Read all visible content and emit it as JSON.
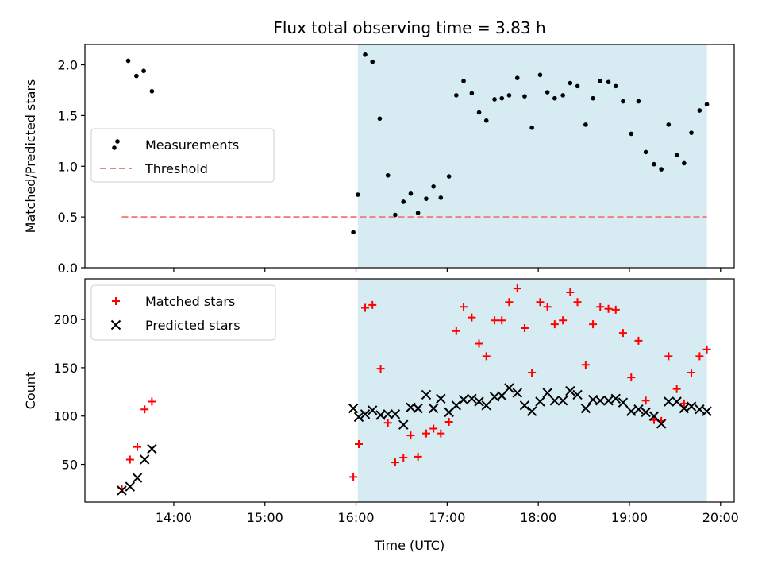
{
  "title": "Flux total observing time = 3.83 h",
  "colors": {
    "shade": "#add8e6",
    "measurement": "#000000",
    "threshold": "#f08080",
    "matched": "#ff0000",
    "predicted": "#000000"
  },
  "chart_data": [
    {
      "type": "scatter",
      "panel": "top",
      "xlabel": "",
      "ylabel": "Matched/Predicted stars",
      "xlim_hours": [
        13.025,
        20.15
      ],
      "ylim": [
        0,
        2.2
      ],
      "yticks": [
        0.0,
        0.5,
        1.0,
        1.5,
        2.0
      ],
      "ytick_labels": [
        "0.0",
        "0.5",
        "1.0",
        "1.5",
        "2.0"
      ],
      "legend": {
        "position": "center-left",
        "labels": [
          "Measurements",
          "Threshold"
        ]
      },
      "shaded_span_hours": [
        16.02,
        19.85
      ],
      "threshold": {
        "name": "Threshold",
        "y": 0.5,
        "x_range_hours": [
          13.43,
          19.85
        ]
      },
      "series": [
        {
          "name": "Measurements",
          "marker": "dot",
          "x_hours": [
            13.5,
            13.59,
            13.67,
            13.76,
            15.97,
            16.02,
            16.1,
            16.18,
            16.26,
            16.35,
            16.43,
            16.52,
            16.6,
            16.68,
            16.77,
            16.85,
            16.93,
            17.02,
            17.1,
            17.18,
            17.27,
            17.35,
            17.43,
            17.52,
            17.6,
            17.68,
            17.77,
            17.85,
            17.93,
            18.02,
            18.1,
            18.18,
            18.27,
            18.35,
            18.43,
            18.52,
            18.6,
            18.68,
            18.77,
            18.85,
            18.93,
            19.02,
            19.1,
            19.18,
            19.27,
            19.35,
            19.43,
            19.52,
            19.6,
            19.68,
            19.77,
            19.85
          ],
          "y": [
            2.04,
            1.89,
            1.94,
            1.74,
            0.35,
            0.72,
            2.1,
            2.03,
            1.47,
            0.91,
            0.52,
            0.65,
            0.73,
            0.54,
            0.68,
            0.8,
            0.69,
            0.9,
            1.7,
            1.84,
            1.72,
            1.53,
            1.45,
            1.66,
            1.67,
            1.7,
            1.87,
            1.69,
            1.38,
            1.9,
            1.73,
            1.67,
            1.7,
            1.82,
            1.79,
            1.41,
            1.67,
            1.84,
            1.83,
            1.79,
            1.64,
            1.32,
            1.64,
            1.14,
            1.02,
            0.97,
            1.41,
            1.11,
            1.03,
            1.33,
            1.55,
            1.61
          ]
        }
      ]
    },
    {
      "type": "scatter",
      "panel": "bottom",
      "xlabel": "Time (UTC)",
      "ylabel": "Count",
      "xlim_hours": [
        13.025,
        20.15
      ],
      "ylim": [
        11,
        242
      ],
      "yticks": [
        50,
        100,
        150,
        200
      ],
      "ytick_labels": [
        "50",
        "100",
        "150",
        "200"
      ],
      "xticks_hours": [
        14,
        15,
        16,
        17,
        18,
        19,
        20
      ],
      "xtick_labels": [
        "14:00",
        "15:00",
        "16:00",
        "17:00",
        "18:00",
        "19:00",
        "20:00"
      ],
      "legend": {
        "position": "top-left",
        "labels": [
          "Matched stars",
          "Predicted stars"
        ]
      },
      "shaded_span_hours": [
        16.02,
        19.85
      ],
      "series": [
        {
          "name": "Matched stars",
          "marker": "plus",
          "x_hours": [
            13.43,
            13.52,
            13.6,
            13.68,
            13.76,
            15.97,
            16.03,
            16.1,
            16.18,
            16.27,
            16.35,
            16.43,
            16.52,
            16.6,
            16.68,
            16.77,
            16.85,
            16.93,
            17.02,
            17.1,
            17.18,
            17.27,
            17.35,
            17.43,
            17.52,
            17.6,
            17.68,
            17.77,
            17.85,
            17.93,
            18.02,
            18.1,
            18.18,
            18.27,
            18.35,
            18.43,
            18.52,
            18.6,
            18.68,
            18.77,
            18.85,
            18.93,
            19.02,
            19.1,
            19.18,
            19.27,
            19.35,
            19.43,
            19.52,
            19.6,
            19.68,
            19.77,
            19.85
          ],
          "y": [
            25,
            55,
            68,
            107,
            115,
            37,
            71,
            212,
            215,
            149,
            93,
            52,
            57,
            80,
            58,
            82,
            87,
            82,
            94,
            188,
            213,
            202,
            175,
            162,
            199,
            199,
            218,
            232,
            191,
            145,
            218,
            213,
            195,
            199,
            228,
            218,
            153,
            195,
            213,
            211,
            210,
            186,
            140,
            178,
            116,
            96,
            95,
            162,
            128,
            113,
            145,
            162,
            169
          ]
        },
        {
          "name": "Predicted stars",
          "marker": "x",
          "x_hours": [
            13.43,
            13.52,
            13.6,
            13.68,
            13.76,
            15.97,
            16.03,
            16.1,
            16.18,
            16.27,
            16.35,
            16.43,
            16.52,
            16.6,
            16.68,
            16.77,
            16.85,
            16.93,
            17.02,
            17.1,
            17.18,
            17.27,
            17.35,
            17.43,
            17.52,
            17.6,
            17.68,
            17.77,
            17.85,
            17.93,
            18.02,
            18.1,
            18.18,
            18.27,
            18.35,
            18.43,
            18.52,
            18.6,
            18.68,
            18.77,
            18.85,
            18.93,
            19.02,
            19.1,
            19.18,
            19.27,
            19.35,
            19.43,
            19.52,
            19.6,
            19.68,
            19.77,
            19.85
          ],
          "y": [
            23,
            27,
            36,
            55,
            66,
            108,
            99,
            102,
            106,
            101,
            102,
            102,
            91,
            109,
            108,
            122,
            108,
            118,
            104,
            111,
            117,
            118,
            115,
            111,
            120,
            121,
            129,
            124,
            111,
            105,
            115,
            124,
            116,
            116,
            126,
            122,
            108,
            117,
            116,
            116,
            118,
            114,
            105,
            107,
            104,
            100,
            92,
            115,
            115,
            108,
            110,
            107,
            105
          ]
        }
      ]
    }
  ]
}
